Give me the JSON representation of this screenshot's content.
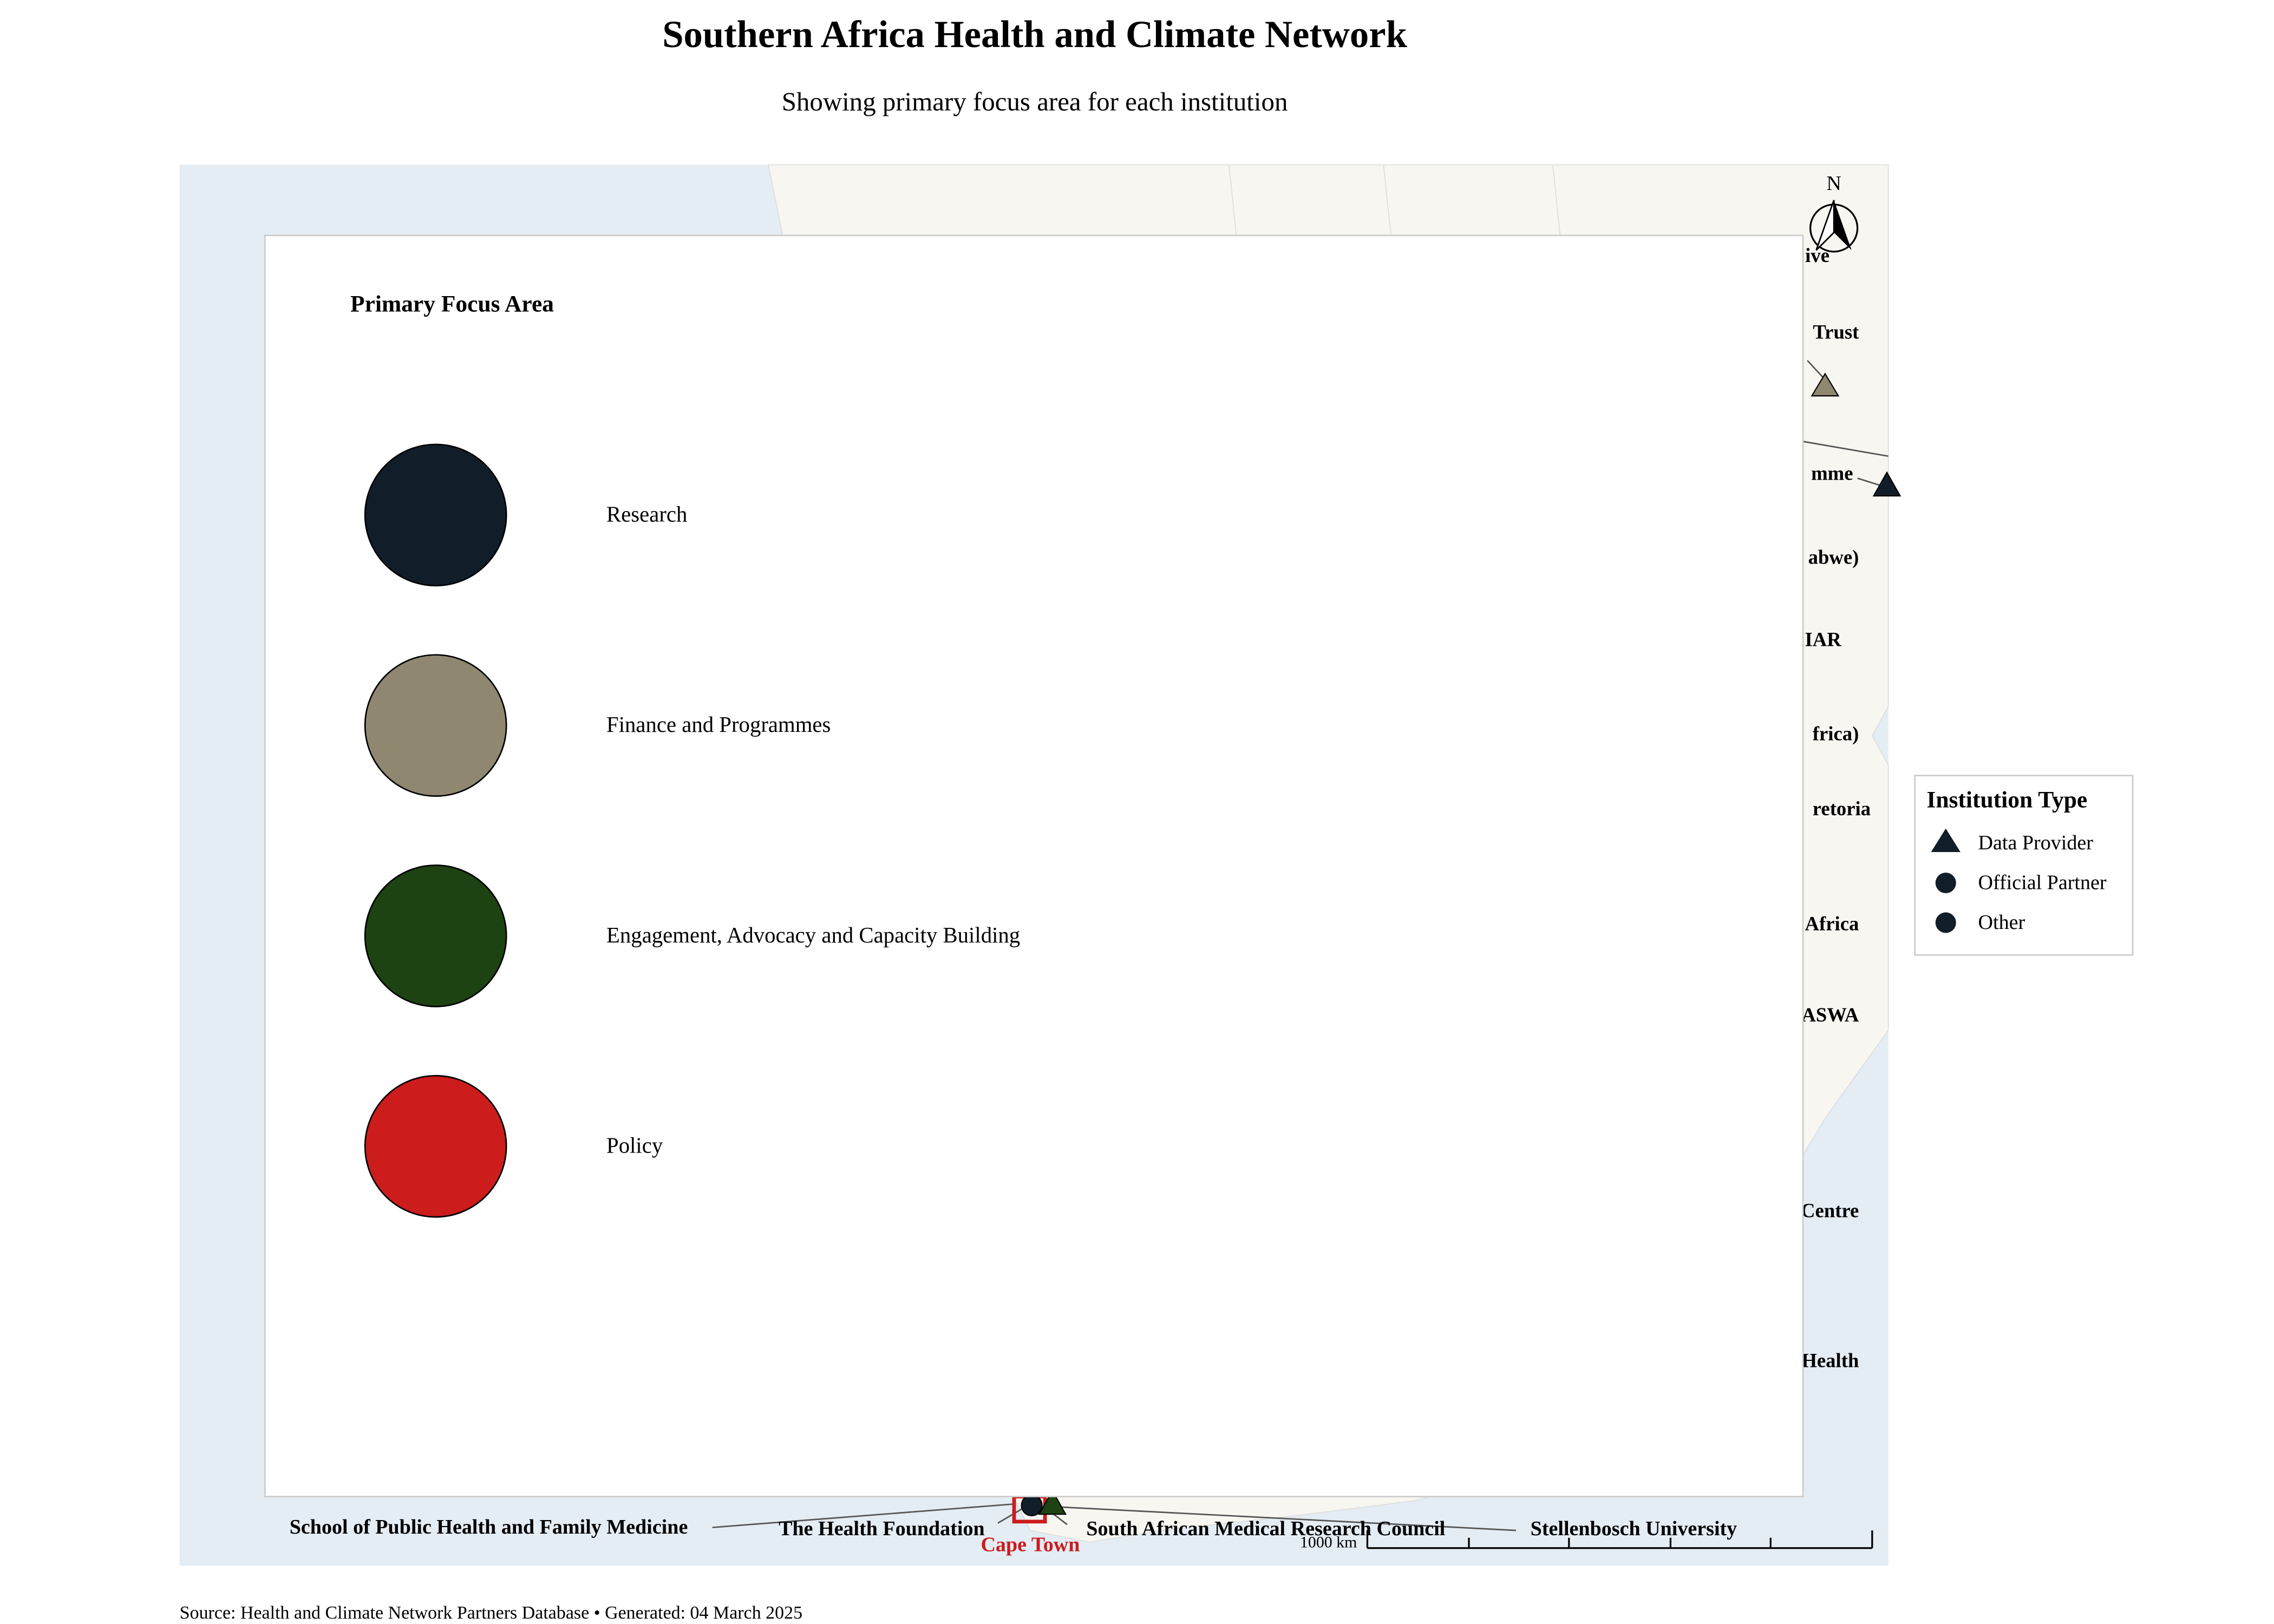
{
  "title": "Southern Africa Health and Climate Network",
  "subtitle": "Showing primary focus area for each institution",
  "focus_legend": {
    "title": "Primary Focus Area",
    "items": [
      {
        "label": "Research",
        "color": "#111e29"
      },
      {
        "label": "Finance and Programmes",
        "color": "#8f8770"
      },
      {
        "label": "Engagement, Advocacy and Capacity Building",
        "color": "#1e4312"
      },
      {
        "label": "Policy",
        "color": "#cc1c1c"
      }
    ]
  },
  "type_legend": {
    "title": "Institution Type",
    "items": [
      "Data Provider",
      "Official Partner",
      "Other"
    ]
  },
  "institution_labels": [
    "ive",
    "Trust",
    "mme",
    "abwe)",
    "IAR",
    "frica)",
    "retoria",
    "Africa",
    "ASWA",
    "Centre",
    "Health"
  ],
  "bottom_labels": [
    "School of Public Health and Family Medicine",
    "The Health Foundation",
    "South African Medical Research Council",
    "Stellenbosch University"
  ],
  "city": "Cape Town",
  "north": "N",
  "scale": "1000 km",
  "source": "Source: Health and Climate Network Partners Database • Generated: 04 March 2025"
}
